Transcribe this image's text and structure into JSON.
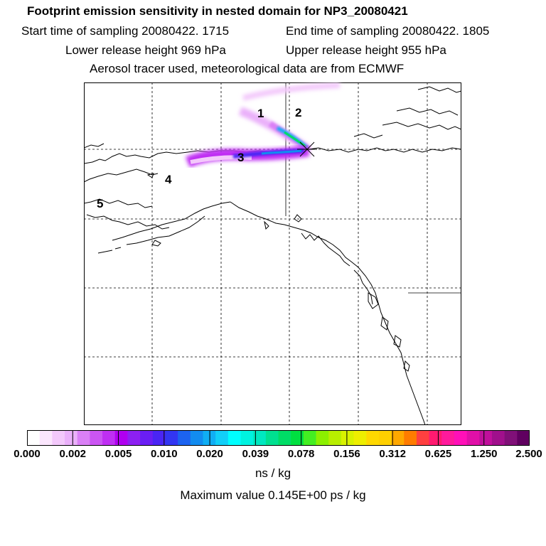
{
  "title": "Footprint emission sensitivity in nested domain for NP3_20080421",
  "sampling": {
    "start": "Start time of sampling 20080422.  1715",
    "end": "End time of sampling 20080422.  1805"
  },
  "release": {
    "lower": "Lower release height  969 hPa",
    "upper": "Upper release height  955 hPa"
  },
  "tracer_note": "Aerosol tracer used, meteorological data are from ECMWF",
  "map_labels": [
    "1",
    "2",
    "3",
    "4",
    "5"
  ],
  "colorbar": {
    "ticks": [
      "0.000",
      "0.002",
      "0.005",
      "0.010",
      "0.020",
      "0.039",
      "0.078",
      "0.156",
      "0.312",
      "0.625",
      "1.250",
      "2.500"
    ],
    "colors": [
      "#ffffff",
      "#fbe6fd",
      "#f3c8fb",
      "#eab0fa",
      "#da80f6",
      "#cb55f3",
      "#bf2ff3",
      "#b000f0",
      "#8d20f2",
      "#6a1ef4",
      "#4a25f4",
      "#3236f2",
      "#1c63f0",
      "#128cf0",
      "#10aef4",
      "#12cff8",
      "#00ffff",
      "#00f2e0",
      "#00e8c0",
      "#00e090",
      "#00dd66",
      "#00e040",
      "#44ee22",
      "#8cf000",
      "#b8ee00",
      "#d8f200",
      "#eeee00",
      "#ffd800",
      "#ffd000",
      "#ffa800",
      "#ff7c00",
      "#ff4040",
      "#ff1a70",
      "#ff1a9c",
      "#ff10b8",
      "#e010a8",
      "#c0109c",
      "#a0108c",
      "#801078",
      "#600060"
    ]
  },
  "units": "ns / kg",
  "max_value": "Maximum value  0.145E+00 ps / kg"
}
